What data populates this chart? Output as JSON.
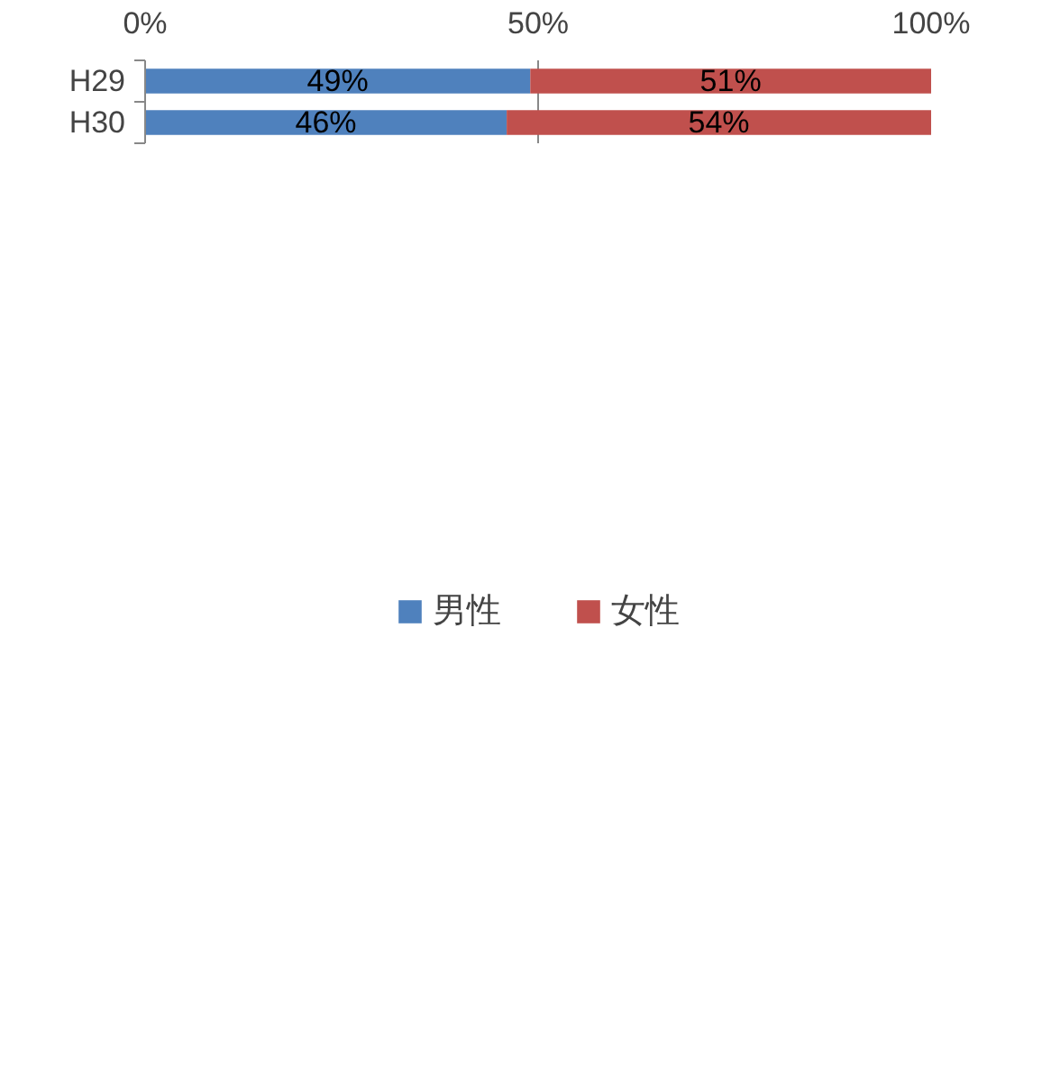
{
  "chart_data": {
    "type": "bar",
    "orientation": "horizontal",
    "stacked": true,
    "categories": [
      "H29",
      "H30"
    ],
    "series": [
      {
        "name": "男性",
        "color": "#4f81bd",
        "values": [
          49,
          46
        ],
        "value_labels": [
          "49%",
          "46%"
        ]
      },
      {
        "name": "女性",
        "color": "#c0504d",
        "values": [
          51,
          54
        ],
        "value_labels": [
          "51%",
          "54%"
        ]
      }
    ],
    "xlim": [
      0,
      100
    ],
    "xticks": [
      {
        "value": 0,
        "label": "0%"
      },
      {
        "value": 50,
        "label": "50%"
      },
      {
        "value": 100,
        "label": "100%"
      }
    ],
    "grid": "x",
    "legend": "bottom"
  }
}
